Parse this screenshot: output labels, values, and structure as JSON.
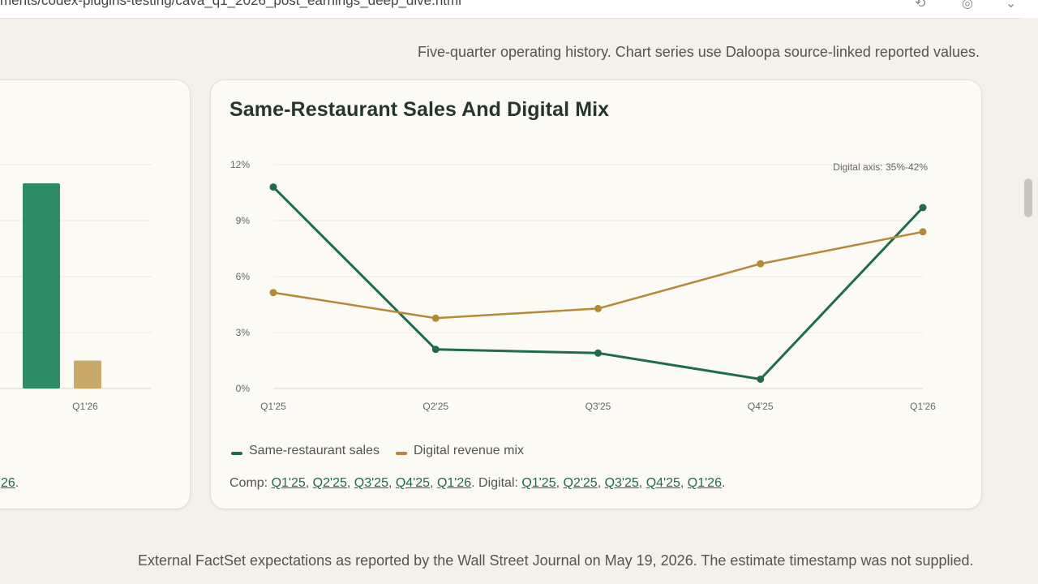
{
  "browser": {
    "url_fragment": "ments/codex-plugins-testing/cava_q1_2026_post_earnings_deep_dive.html"
  },
  "page": {
    "subtitle": "Five-quarter operating history. Chart series use Daloopa source-linked reported values.",
    "footer_note": "External FactSet expectations as reported by the Wall Street Journal on May 19, 2026. The estimate timestamp was not supplied."
  },
  "left_card": {
    "x_label": "Q1'26",
    "source_tail": "26",
    "source_end": "."
  },
  "right_card": {
    "title": "Same-Restaurant Sales And Digital Mix",
    "axis_note": "Digital axis: 35%-42%",
    "legend": [
      {
        "label": "Same-restaurant sales",
        "color": "#1f6b4c"
      },
      {
        "label": "Digital revenue mix",
        "color": "#b48a35"
      }
    ],
    "sources": {
      "comp_label": "Comp:",
      "digital_label": "Digital:",
      "comp_links": [
        "Q1'25",
        "Q2'25",
        "Q3'25",
        "Q4'25",
        "Q1'26"
      ],
      "digital_links": [
        "Q1'25",
        "Q2'25",
        "Q3'25",
        "Q4'25",
        "Q1'26"
      ]
    }
  },
  "colors": {
    "green": "#1f6b4c",
    "gold": "#b48a35",
    "bar_green": "#2e8b65",
    "bar_gold": "#c8a96a"
  },
  "chart_data": [
    {
      "type": "bar",
      "categories": [
        "Q1'26"
      ],
      "series": [
        {
          "values": [
            11
          ]
        },
        {
          "values": [
            1.5
          ]
        }
      ],
      "ylim": [
        0,
        12
      ]
    },
    {
      "type": "line",
      "title": "Same-Restaurant Sales And Digital Mix",
      "x": [
        "Q1'25",
        "Q2'25",
        "Q3'25",
        "Q4'25",
        "Q1'26"
      ],
      "y_ticks": [
        "0%",
        "3%",
        "6%",
        "9%",
        "12%"
      ],
      "ylim": [
        0,
        12
      ],
      "series": [
        {
          "name": "Same-restaurant sales",
          "axis": "left",
          "values": [
            10.8,
            2.1,
            1.9,
            0.5,
            9.7
          ],
          "unit": "%"
        },
        {
          "name": "Digital revenue mix",
          "axis": "right",
          "values": [
            38.0,
            37.2,
            37.5,
            38.9,
            39.9
          ],
          "ylim": [
            35,
            42
          ],
          "unit": "%"
        }
      ],
      "grid": true
    }
  ]
}
